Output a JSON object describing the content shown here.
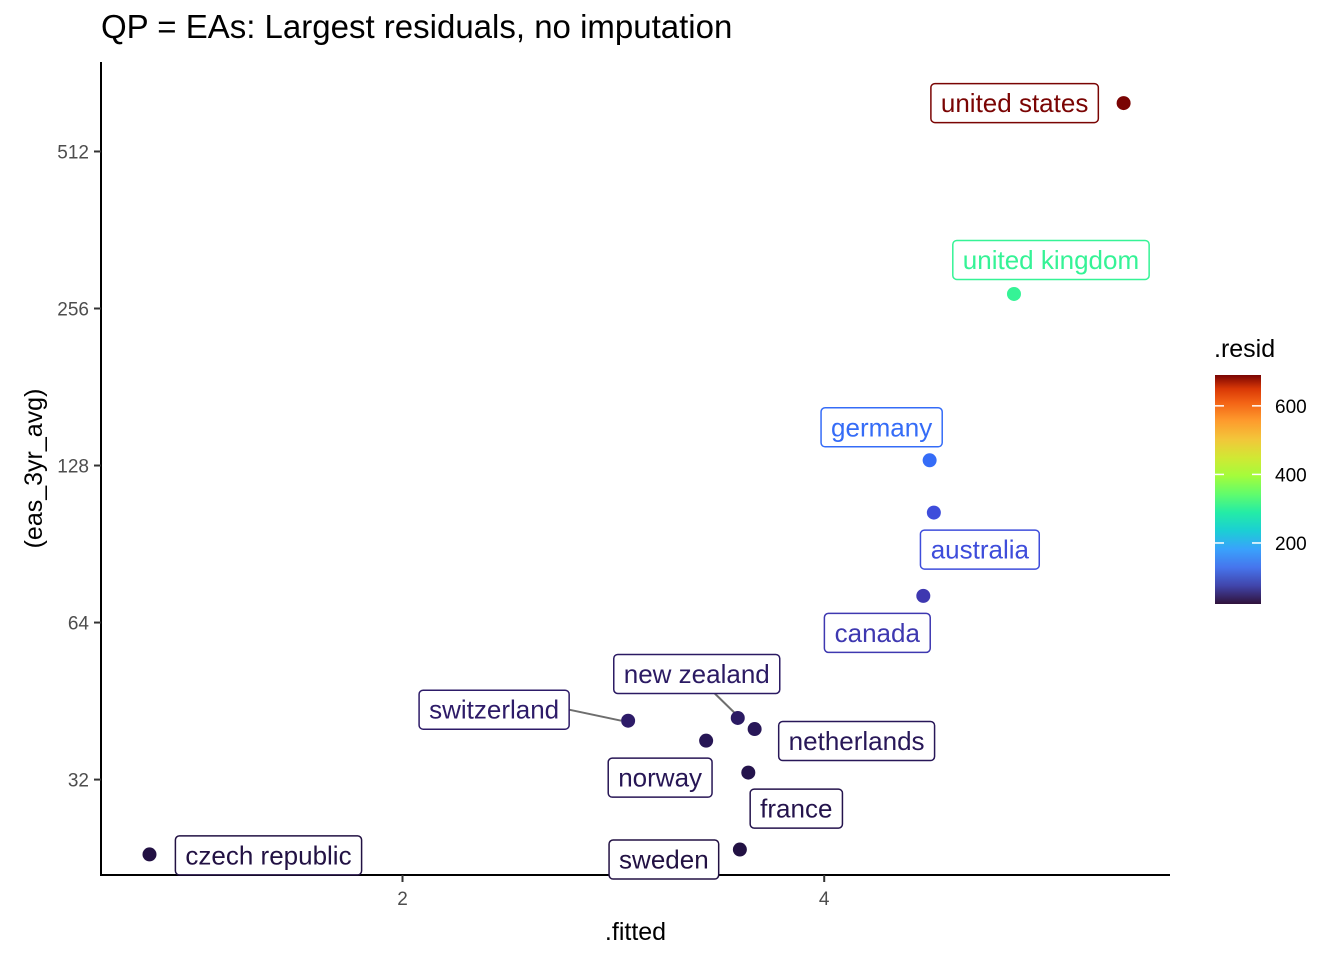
{
  "chart_data": {
    "type": "scatter",
    "title": "QP = EAs: Largest residuals, no imputation",
    "xlabel": ".fitted",
    "ylabel": "(eas_3yr_avg)",
    "xlim": [
      0.57,
      5.64
    ],
    "y_scale": "log2",
    "ylim": [
      21,
      760
    ],
    "x_ticks": [
      2,
      4
    ],
    "y_ticks": [
      32,
      64,
      128,
      256,
      512
    ],
    "grid": false,
    "legend": {
      "title": ".resid",
      "position": "right",
      "palette": "turbo",
      "range": [
        22,
        690
      ],
      "ticks": [
        200,
        400,
        600
      ]
    },
    "points": [
      {
        "label": "united states",
        "x": 5.42,
        "y": 634,
        "resid": 690,
        "color": "#7a0403"
      },
      {
        "label": "united kingdom",
        "x": 4.9,
        "y": 273,
        "resid": 262,
        "color": "#35f396"
      },
      {
        "label": "germany",
        "x": 4.5,
        "y": 131,
        "resid": 108,
        "color": "#356cf7"
      },
      {
        "label": "australia",
        "x": 4.52,
        "y": 104,
        "resid": 88,
        "color": "#3e4ddb"
      },
      {
        "label": "canada",
        "x": 4.47,
        "y": 72,
        "resid": 58,
        "color": "#3e38b0"
      },
      {
        "label": "new zealand",
        "x": 3.59,
        "y": 42.0,
        "resid": 30,
        "color": "#2b1a63"
      },
      {
        "label": "netherlands",
        "x": 3.67,
        "y": 40.0,
        "resid": 28,
        "color": "#281758"
      },
      {
        "label": "switzerland",
        "x": 3.07,
        "y": 41.5,
        "resid": 32,
        "color": "#2d1b68"
      },
      {
        "label": "norway",
        "x": 3.44,
        "y": 38.0,
        "resid": 27,
        "color": "#271655"
      },
      {
        "label": "france",
        "x": 3.64,
        "y": 33.0,
        "resid": 24,
        "color": "#24134c"
      },
      {
        "label": "sweden",
        "x": 3.6,
        "y": 23.5,
        "resid": 22,
        "color": "#221143"
      },
      {
        "label": "czech republic",
        "x": 0.8,
        "y": 23.0,
        "resid": 22,
        "color": "#221143"
      }
    ]
  }
}
